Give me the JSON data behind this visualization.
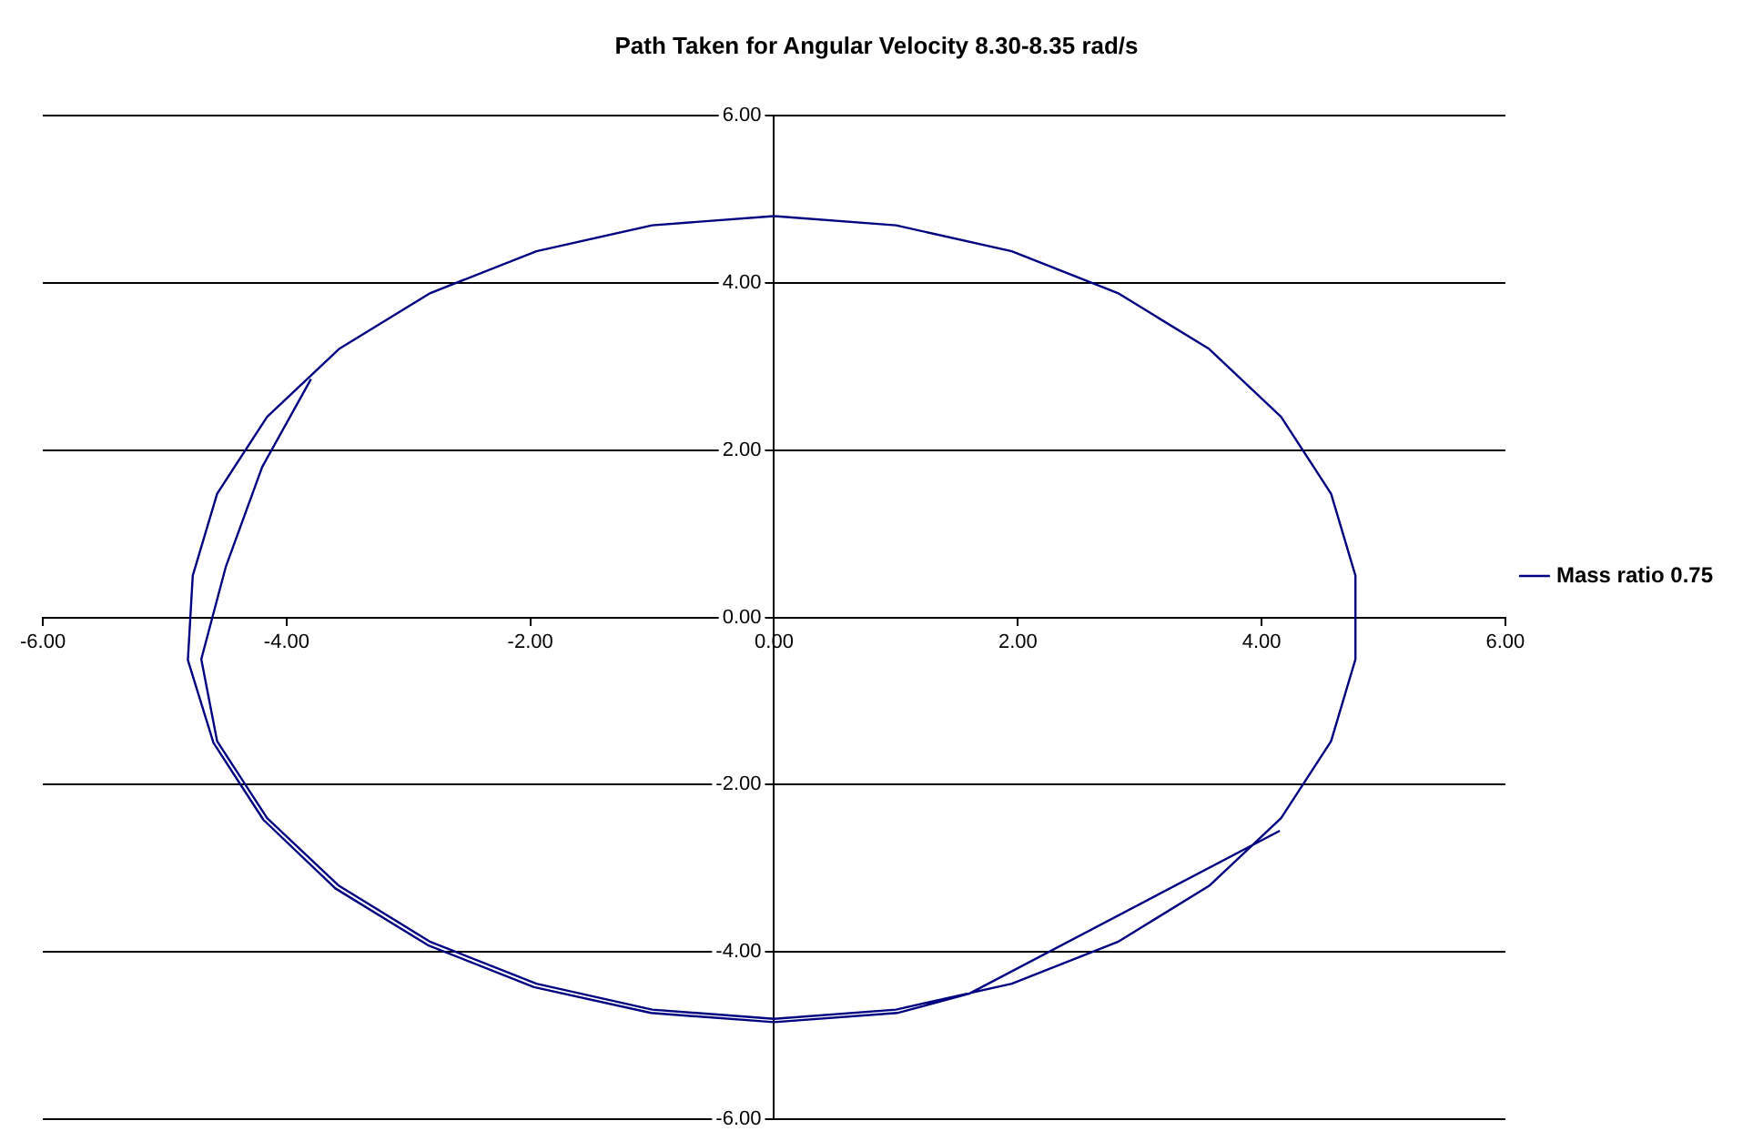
{
  "chart_data": {
    "type": "line",
    "title": "Path Taken for Angular Velocity 8.30-8.35 rad/s",
    "xlim": [
      -6,
      6
    ],
    "ylim": [
      -6,
      6
    ],
    "xticks": [
      {
        "value": -6,
        "label": "-6.00"
      },
      {
        "value": -4,
        "label": "-4.00"
      },
      {
        "value": -2,
        "label": "-2.00"
      },
      {
        "value": 0,
        "label": "0.00"
      },
      {
        "value": 2,
        "label": "2.00"
      },
      {
        "value": 4,
        "label": "4.00"
      },
      {
        "value": 6,
        "label": "6.00"
      }
    ],
    "yticks": [
      {
        "value": -6,
        "label": "-6.00"
      },
      {
        "value": -4,
        "label": "-4.00"
      },
      {
        "value": -2,
        "label": "-2.00"
      },
      {
        "value": 0,
        "label": "0.00"
      },
      {
        "value": 2,
        "label": "2.00"
      },
      {
        "value": 4,
        "label": "4.00"
      },
      {
        "value": 6,
        "label": "6.00"
      }
    ],
    "grid": "y",
    "legend": "right",
    "marker": "none",
    "line_style": "solid",
    "series": [
      {
        "name": "Mass ratio 0.75",
        "color": "#000080",
        "x": [
          -3.8,
          -4.2,
          -4.5,
          -4.7,
          -4.57,
          -4.16,
          -3.57,
          -2.82,
          -1.95,
          -1.0,
          0,
          1.0,
          1.95,
          2.82,
          3.57,
          4.16,
          4.57,
          4.77,
          4.77,
          4.57,
          4.16,
          3.57,
          2.82,
          1.95,
          1.0,
          0,
          -1.0,
          -1.95,
          -2.82,
          -3.57,
          -4.16,
          -4.57,
          -4.77,
          -4.81,
          -4.6,
          -4.19,
          -3.6,
          -2.84,
          -1.97,
          -1.01,
          0,
          1.01,
          1.6,
          4.15
        ],
        "values": [
          2.85,
          1.8,
          0.6,
          -0.5,
          -1.48,
          -2.4,
          -3.21,
          -3.88,
          -4.38,
          -4.69,
          -4.8,
          -4.69,
          -4.38,
          -3.88,
          -3.21,
          -2.4,
          -1.48,
          -0.5,
          0.5,
          1.48,
          2.4,
          3.21,
          3.88,
          4.38,
          4.69,
          4.8,
          4.69,
          4.38,
          3.88,
          3.21,
          2.4,
          1.48,
          0.5,
          -0.51,
          -1.5,
          -2.42,
          -3.24,
          -3.92,
          -4.42,
          -4.73,
          -4.84,
          -4.73,
          -4.5,
          -2.55
        ]
      }
    ]
  }
}
